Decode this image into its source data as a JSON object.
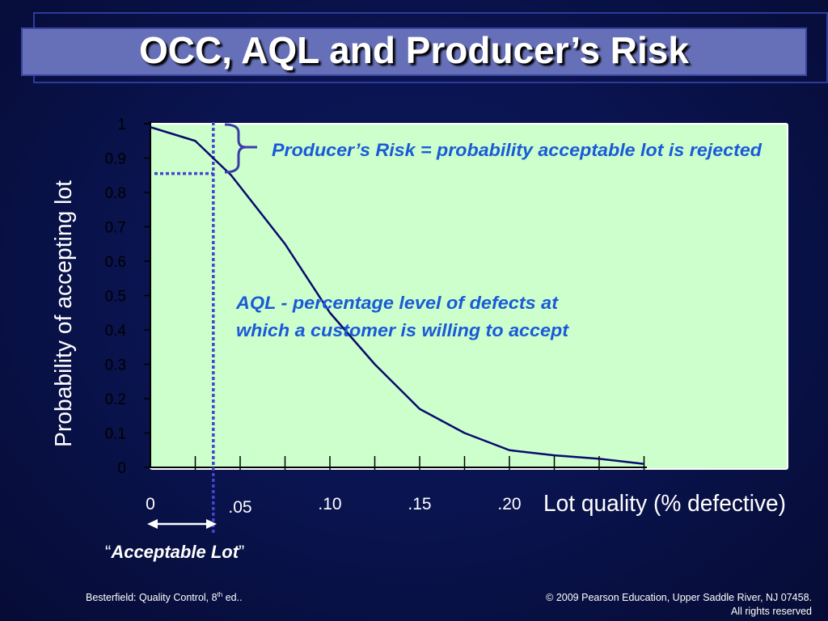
{
  "slide": {
    "title": "OCC, AQL and Producer’s  Risk"
  },
  "annotations": {
    "producers_risk_term": "Producer’s Risk",
    "producers_risk_definition": " = probability acceptable lot is rejected",
    "aql_line1": "AQL - percentage level of defects at",
    "aql_line2": "which a customer is willing to accept",
    "acceptable_lot_open_quote": "“",
    "acceptable_lot_text": "Acceptable Lot",
    "acceptable_lot_close_quote": "”"
  },
  "footer": {
    "source": "Besterfield: Quality Control, 8",
    "source_superscript": "th",
    "source_suffix": " ed..",
    "copyright": "© 2009 Pearson Education, Upper Saddle River, NJ 07458.",
    "rights": "All rights reserved"
  },
  "colors": {
    "plot_background": "#ccffcc",
    "curve": "#0a0a6e",
    "annotation_text": "#1a5ad8",
    "dotted_guides": "#4444cc",
    "bracket": "#3c3ca8"
  },
  "chart_data": {
    "type": "line",
    "xlabel": "Lot quality (% defective)",
    "ylabel": "Probability of accepting lot",
    "y_ticks": [
      {
        "value": 0,
        "label": "0"
      },
      {
        "value": 0.1,
        "label": "0.1"
      },
      {
        "value": 0.2,
        "label": "0.2"
      },
      {
        "value": 0.3,
        "label": "0.3"
      },
      {
        "value": 0.4,
        "label": "0.4"
      },
      {
        "value": 0.5,
        "label": "0.5"
      },
      {
        "value": 0.6,
        "label": "0.6"
      },
      {
        "value": 0.7,
        "label": "0.7"
      },
      {
        "value": 0.8,
        "label": "0.8"
      },
      {
        "value": 0.9,
        "label": "0.9"
      },
      {
        "value": 1,
        "label": "1"
      }
    ],
    "x_tick_labels": [
      {
        "value": 0,
        "label": "0"
      },
      {
        "value": 0.05,
        "label": ".05"
      },
      {
        "value": 0.1,
        "label": ".10"
      },
      {
        "value": 0.15,
        "label": ".15"
      },
      {
        "value": 0.2,
        "label": ".20"
      }
    ],
    "x_tick_marks": [
      0.025,
      0.05,
      0.075,
      0.1,
      0.125,
      0.15,
      0.175,
      0.2,
      0.225,
      0.25,
      0.275
    ],
    "xlim": [
      0,
      0.35
    ],
    "ylim": [
      0,
      1
    ],
    "series": [
      {
        "x": [
          0,
          0.025,
          0.045,
          0.075,
          0.1,
          0.125,
          0.15,
          0.175,
          0.2,
          0.225,
          0.25,
          0.275
        ],
        "y": [
          0.99,
          0.95,
          0.85,
          0.65,
          0.45,
          0.3,
          0.17,
          0.1,
          0.05,
          0.035,
          0.025,
          0.01
        ]
      }
    ],
    "aql": 0.04,
    "producers_risk_probability": 0.855
  }
}
